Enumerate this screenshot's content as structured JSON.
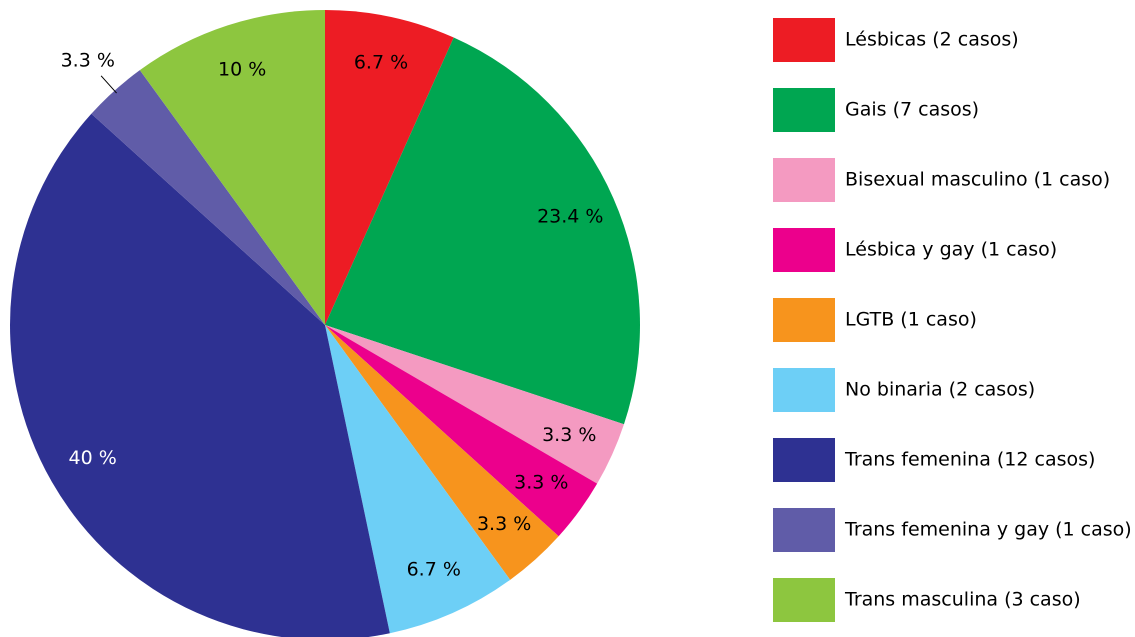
{
  "chart_data": {
    "type": "pie",
    "categories": [
      "Lésbicas (2 casos)",
      "Gais (7 casos)",
      "Bisexual masculino (1 caso)",
      "Lésbica y gay (1 caso)",
      "LGTB (1 caso)",
      "No binaria (2 casos)",
      "Trans femenina (12 casos)",
      "Trans femenina y gay (1 caso)",
      "Trans masculina (3 caso)"
    ],
    "values": [
      6.7,
      23.4,
      3.3,
      3.3,
      3.3,
      6.7,
      40,
      3.3,
      10
    ],
    "value_labels": [
      "6.7 %",
      "23.4 %",
      "3.3 %",
      "3.3 %",
      "3.3 %",
      "6.7 %",
      "40 %",
      "3.3 %",
      "10 %"
    ],
    "colors": [
      "#ed1c24",
      "#00a651",
      "#f49ac1",
      "#ec008c",
      "#f7941d",
      "#6dcff6",
      "#2e3192",
      "#605ca8",
      "#8dc63f"
    ],
    "legend": "right"
  }
}
